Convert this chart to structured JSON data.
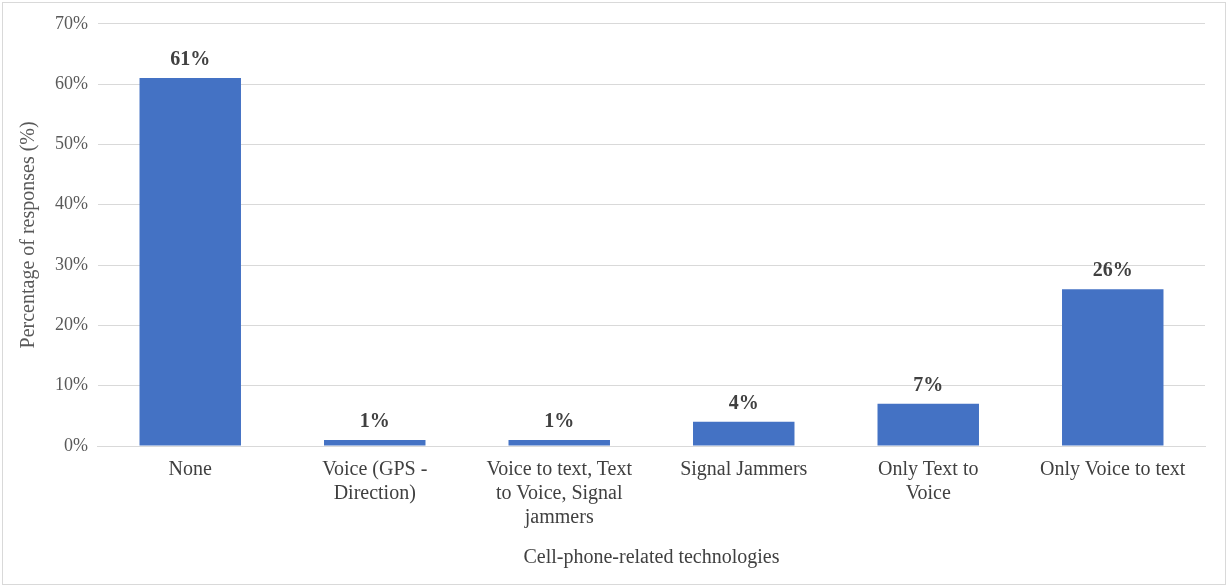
{
  "chart_data": {
    "type": "bar",
    "xlabel": "Cell-phone-related technologies",
    "ylabel": "Percentage of responses (%)",
    "categories": [
      "None",
      "Voice (GPS - Direction)",
      "Voice to text, Text to Voice, Signal jammers",
      "Signal Jammers",
      "Only Text to Voice",
      "Only Voice to text"
    ],
    "values": [
      61,
      1,
      1,
      4,
      7,
      26
    ],
    "value_labels": [
      "61%",
      "1%",
      "1%",
      "4%",
      "7%",
      "26%"
    ],
    "color": "#4472c4",
    "ylim": [
      0,
      70
    ],
    "yticks": [
      {
        "value": 0,
        "label": "0%"
      },
      {
        "value": 10,
        "label": "10%"
      },
      {
        "value": 20,
        "label": "20%"
      },
      {
        "value": 30,
        "label": "30%"
      },
      {
        "value": 40,
        "label": "40%"
      },
      {
        "value": 50,
        "label": "50%"
      },
      {
        "value": 60,
        "label": "60%"
      },
      {
        "value": 70,
        "label": "70%"
      }
    ],
    "grid": "y"
  }
}
